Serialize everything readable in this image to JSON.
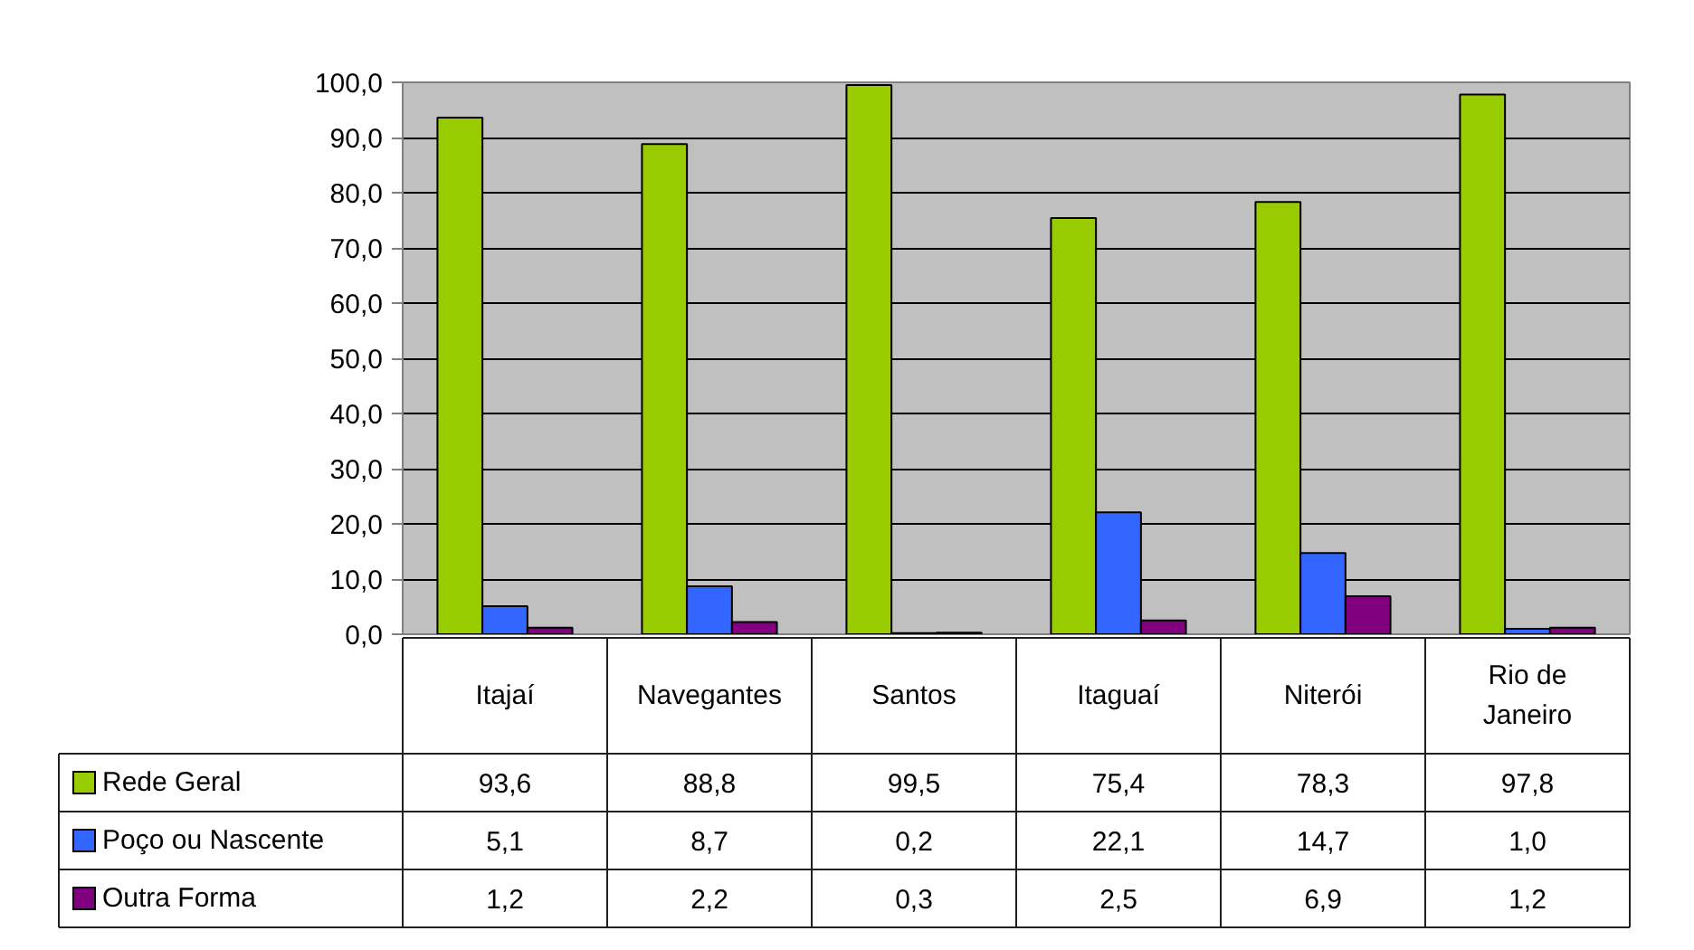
{
  "chart_data": {
    "type": "bar",
    "categories": [
      "Itajaí",
      "Navegantes",
      "Santos",
      "Itaguaí",
      "Niterói",
      "Rio de Janeiro"
    ],
    "series": [
      {
        "name": "Rede Geral",
        "color": "#99cc00",
        "values": [
          93.6,
          88.8,
          99.5,
          75.4,
          78.3,
          97.8
        ],
        "value_labels": [
          "93,6",
          "88,8",
          "99,5",
          "75,4",
          "78,3",
          "97,8"
        ]
      },
      {
        "name": "Poço ou Nascente",
        "color": "#3366ff",
        "values": [
          5.1,
          8.7,
          0.2,
          22.1,
          14.7,
          1.0
        ],
        "value_labels": [
          "5,1",
          "8,7",
          "0,2",
          "22,1",
          "14,7",
          "1,0"
        ]
      },
      {
        "name": "Outra Forma",
        "color": "#800080",
        "values": [
          1.2,
          2.2,
          0.3,
          2.5,
          6.9,
          1.2
        ],
        "value_labels": [
          "1,2",
          "2,2",
          "0,3",
          "2,5",
          "6,9",
          "1,2"
        ]
      }
    ],
    "ylim": [
      0,
      100
    ],
    "yticks": [
      {
        "value": 0,
        "label": "0,0"
      },
      {
        "value": 10,
        "label": "10,0"
      },
      {
        "value": 20,
        "label": "20,0"
      },
      {
        "value": 30,
        "label": "30,0"
      },
      {
        "value": 40,
        "label": "40,0"
      },
      {
        "value": 50,
        "label": "50,0"
      },
      {
        "value": 60,
        "label": "60,0"
      },
      {
        "value": 70,
        "label": "70,0"
      },
      {
        "value": 80,
        "label": "80,0"
      },
      {
        "value": 90,
        "label": "90,0"
      },
      {
        "value": 100,
        "label": "100,0"
      }
    ],
    "grid": "y",
    "legend": "bottom left"
  }
}
